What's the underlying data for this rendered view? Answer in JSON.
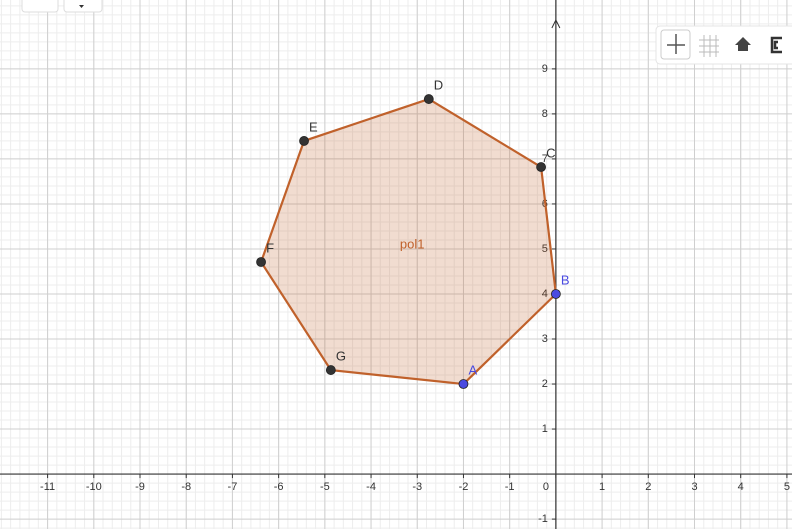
{
  "graphics": {
    "xlim": [
      -12.03,
      5.11
    ],
    "ylim": [
      -1.22,
      10.53
    ],
    "xticks": [
      -11,
      -10,
      -9,
      -8,
      -7,
      -6,
      -5,
      -4,
      -3,
      -2,
      -1,
      0,
      1,
      2,
      3,
      4,
      5
    ],
    "yticks": [
      -1,
      1,
      2,
      3,
      4,
      5,
      6,
      7,
      8,
      9
    ],
    "polygon": {
      "label": "pol1",
      "color": "#c0612b"
    },
    "points": [
      {
        "label": "A",
        "x": -2,
        "y": 2,
        "color": "#4a4ae0"
      },
      {
        "label": "B",
        "x": 0,
        "y": 4,
        "color": "#4a4ae0"
      },
      {
        "label": "C",
        "x": -0.32,
        "y": 6.82,
        "color": "#333333"
      },
      {
        "label": "D",
        "x": -2.75,
        "y": 8.33,
        "color": "#333333"
      },
      {
        "label": "E",
        "x": -5.45,
        "y": 7.4,
        "color": "#333333"
      },
      {
        "label": "F",
        "x": -6.38,
        "y": 4.71,
        "color": "#333333"
      },
      {
        "label": "G",
        "x": -4.87,
        "y": 2.31,
        "color": "#333333"
      }
    ]
  }
}
